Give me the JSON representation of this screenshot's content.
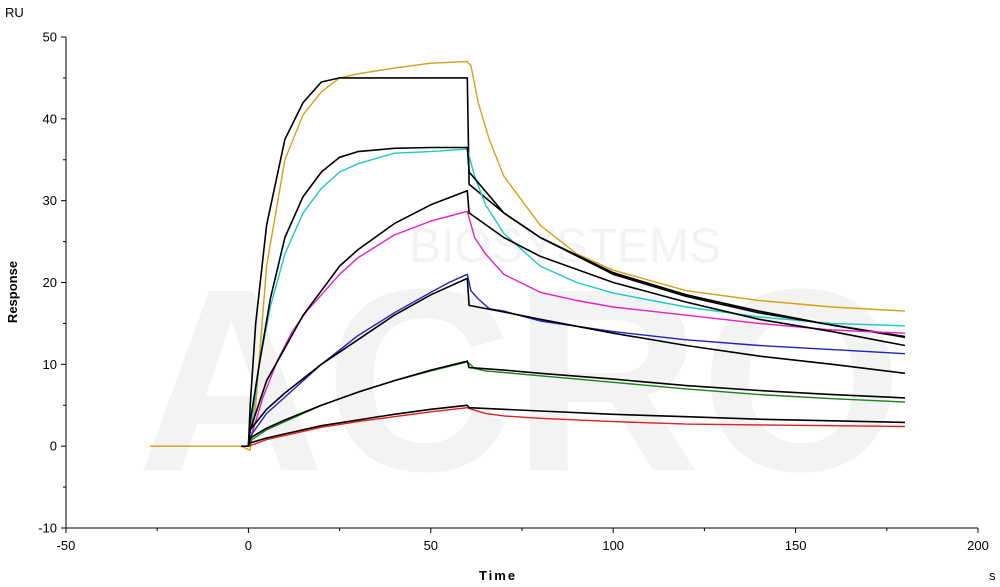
{
  "chart_data": {
    "type": "line",
    "title": "",
    "xlabel": "Time",
    "ylabel": "Response",
    "x_unit": "s",
    "y_unit": "RU",
    "xlim": [
      -50,
      200
    ],
    "ylim": [
      -10,
      50
    ],
    "x_ticks": [
      -50,
      0,
      50,
      100,
      150,
      200
    ],
    "y_ticks": [
      -10,
      0,
      10,
      20,
      30,
      40,
      50
    ],
    "grid": false,
    "legend": "none",
    "watermark": [
      "ACRO",
      "BIOSYSTEMS"
    ],
    "series": [
      {
        "color": "#d4a017",
        "x": [
          -27,
          -2,
          0.5,
          2,
          5,
          10,
          15,
          20,
          25,
          30,
          40,
          50,
          60,
          61,
          63,
          66,
          70,
          80,
          90,
          100,
          120,
          140,
          160,
          180
        ],
        "y": [
          0,
          0,
          -0.5,
          5,
          22,
          35,
          40.5,
          43.3,
          45,
          45.5,
          46.2,
          46.8,
          47,
          46.5,
          42,
          37.5,
          33,
          27,
          23.5,
          21.5,
          19,
          17.8,
          17,
          16.5
        ]
      },
      {
        "color": "#000000",
        "x": [
          -2,
          0,
          0.5,
          2,
          5,
          10,
          15,
          20,
          25,
          30,
          40,
          50,
          60,
          60.5,
          70,
          80,
          100,
          120,
          140,
          160,
          180
        ],
        "y": [
          0,
          0,
          5,
          15,
          27,
          37.5,
          42,
          44.5,
          45,
          45,
          45,
          45,
          45,
          32,
          28.5,
          25.5,
          21.2,
          18.5,
          16.5,
          14.8,
          13.3
        ]
      },
      {
        "color": "#1ec8c8",
        "x": [
          0,
          1,
          3,
          6,
          10,
          15,
          20,
          25,
          30,
          40,
          50,
          60,
          62,
          65,
          70,
          80,
          90,
          100,
          120,
          140,
          160,
          180
        ],
        "y": [
          0,
          3,
          10,
          17,
          23.5,
          28.5,
          31.5,
          33.5,
          34.5,
          35.8,
          36,
          36.3,
          33,
          29.5,
          26,
          22,
          20,
          18.7,
          17,
          15.8,
          15,
          14.7
        ]
      },
      {
        "color": "#000000",
        "x": [
          0,
          0.5,
          3,
          6,
          10,
          15,
          20,
          25,
          30,
          40,
          50,
          60,
          60.5,
          70,
          80,
          100,
          120,
          140,
          160,
          180
        ],
        "y": [
          0,
          3,
          10,
          18,
          25.5,
          30.5,
          33.5,
          35.3,
          36,
          36.4,
          36.5,
          36.5,
          33.5,
          28.5,
          25.5,
          21,
          18.3,
          16.3,
          14.8,
          13.4
        ]
      },
      {
        "color": "#e020c8",
        "x": [
          0,
          1,
          4,
          8,
          12,
          16,
          20,
          25,
          30,
          40,
          50,
          60,
          62,
          65,
          70,
          80,
          90,
          100,
          120,
          140,
          160,
          180
        ],
        "y": [
          0,
          1.5,
          6,
          10.5,
          14,
          16.5,
          18.5,
          21,
          23,
          25.8,
          27.5,
          28.7,
          25.5,
          23.5,
          21,
          18.8,
          17.8,
          17,
          16,
          15,
          14.2,
          13.8
        ]
      },
      {
        "color": "#000000",
        "x": [
          0,
          0.5,
          5,
          10,
          15,
          20,
          25,
          30,
          40,
          50,
          60,
          60.5,
          70,
          80,
          100,
          120,
          140,
          160,
          180
        ],
        "y": [
          0,
          2,
          8,
          12,
          16,
          19,
          22,
          24,
          27.2,
          29.5,
          31.2,
          28.5,
          25.5,
          23.2,
          20,
          17.6,
          15.5,
          14,
          12.3
        ]
      },
      {
        "color": "#2020c0",
        "x": [
          0,
          1,
          5,
          10,
          20,
          30,
          40,
          50,
          55,
          60,
          61,
          63,
          66,
          70,
          80,
          100,
          120,
          140,
          160,
          180
        ],
        "y": [
          0,
          1.5,
          4,
          6,
          10,
          13.5,
          16.3,
          18.8,
          20,
          21,
          19,
          18,
          16.8,
          16.5,
          15.3,
          14,
          13,
          12.3,
          11.8,
          11.3
        ]
      },
      {
        "color": "#000000",
        "x": [
          0,
          0.5,
          5,
          10,
          20,
          30,
          40,
          50,
          60,
          60.5,
          70,
          80,
          100,
          120,
          140,
          160,
          180
        ],
        "y": [
          0,
          2,
          4.5,
          6.5,
          10,
          13,
          16,
          18.5,
          20.5,
          17.2,
          16.4,
          15.5,
          13.8,
          12.3,
          11,
          10,
          8.9
        ]
      },
      {
        "color": "#208020",
        "x": [
          0,
          1,
          5,
          10,
          20,
          30,
          40,
          50,
          60,
          62,
          65,
          70,
          80,
          100,
          120,
          140,
          160,
          180
        ],
        "y": [
          0,
          0.8,
          2,
          3,
          5,
          6.6,
          8,
          9.2,
          10.3,
          9.5,
          9.2,
          9,
          8.6,
          7.8,
          7,
          6.3,
          5.8,
          5.4
        ]
      },
      {
        "color": "#000000",
        "x": [
          0,
          0.5,
          5,
          10,
          20,
          30,
          40,
          50,
          60,
          60.5,
          70,
          80,
          100,
          120,
          140,
          160,
          180
        ],
        "y": [
          0,
          1,
          2.2,
          3.2,
          5,
          6.6,
          8,
          9.3,
          10.4,
          9.6,
          9.3,
          8.9,
          8.2,
          7.4,
          6.8,
          6.3,
          5.9
        ]
      },
      {
        "color": "#e02020",
        "x": [
          0,
          2,
          5,
          10,
          20,
          30,
          40,
          50,
          60,
          62,
          65,
          70,
          80,
          100,
          120,
          140,
          160,
          180
        ],
        "y": [
          0,
          0.3,
          0.8,
          1.3,
          2.3,
          3,
          3.6,
          4.2,
          4.7,
          4.4,
          4,
          3.7,
          3.4,
          3,
          2.7,
          2.6,
          2.5,
          2.4
        ]
      },
      {
        "color": "#000000",
        "x": [
          0,
          0.5,
          5,
          10,
          20,
          30,
          40,
          50,
          60,
          60.5,
          70,
          80,
          100,
          120,
          140,
          160,
          180
        ],
        "y": [
          0,
          0.4,
          1,
          1.5,
          2.5,
          3.2,
          3.9,
          4.5,
          5,
          4.7,
          4.5,
          4.3,
          3.9,
          3.6,
          3.3,
          3.1,
          2.9
        ]
      }
    ]
  }
}
